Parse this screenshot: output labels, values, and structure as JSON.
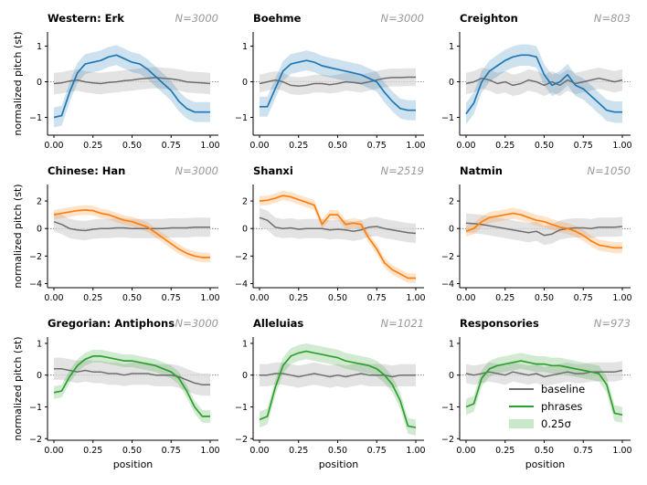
{
  "figure": {
    "ylabel": "normalized pitch (st)",
    "xlabel": "position",
    "legend": {
      "placement": "lower-right of last panel",
      "items": [
        {
          "label": "baseline",
          "kind": "line",
          "color": "#6e6e6e"
        },
        {
          "label": "phrases",
          "kind": "line",
          "color": "#2ca02c"
        },
        {
          "label": "0.25σ",
          "kind": "patch",
          "color": "#2ca02c"
        }
      ]
    },
    "colors": {
      "western": "#1f77b4",
      "chinese": "#ff7f0e",
      "gregorian": "#2ca02c",
      "baseline": "#6e6e6e",
      "band": "#d9d9d9"
    }
  },
  "chart_data": [
    {
      "type": "line",
      "title": "Western: Erk",
      "n": "N=3000",
      "ylabel": "normalized pitch (st)",
      "xlabel": "",
      "color": "#1f77b4",
      "xlim": [
        0,
        1
      ],
      "ylim": [
        -1.5,
        1.4
      ],
      "yticks": [
        -1,
        0,
        1
      ],
      "xticks": [
        "0.00",
        "0.25",
        "0.50",
        "0.75",
        "1.00"
      ],
      "x": [
        0,
        0.05,
        0.1,
        0.15,
        0.2,
        0.25,
        0.3,
        0.35,
        0.4,
        0.45,
        0.5,
        0.55,
        0.6,
        0.65,
        0.7,
        0.75,
        0.8,
        0.85,
        0.9,
        0.95,
        1.0
      ],
      "series": [
        {
          "name": "phrases",
          "values": [
            -1.0,
            -0.95,
            -0.3,
            0.25,
            0.5,
            0.55,
            0.6,
            0.7,
            0.75,
            0.65,
            0.55,
            0.5,
            0.35,
            0.15,
            -0.05,
            -0.25,
            -0.55,
            -0.75,
            -0.85,
            -0.85,
            -0.85
          ],
          "band": 0.28
        },
        {
          "name": "baseline",
          "values": [
            -0.05,
            -0.03,
            0.02,
            0.05,
            0.0,
            -0.03,
            -0.05,
            -0.02,
            0.0,
            0.03,
            0.05,
            0.08,
            0.1,
            0.12,
            0.1,
            0.08,
            0.05,
            0.0,
            -0.02,
            -0.03,
            -0.05
          ],
          "band": 0.3
        }
      ]
    },
    {
      "type": "line",
      "title": "Boehme",
      "n": "N=3000",
      "ylabel": "",
      "xlabel": "",
      "color": "#1f77b4",
      "xlim": [
        0,
        1
      ],
      "ylim": [
        -1.5,
        1.4
      ],
      "yticks": [
        -1,
        0,
        1
      ],
      "xticks": [
        "0.00",
        "0.25",
        "0.50",
        "0.75",
        "1.00"
      ],
      "x": [
        0,
        0.05,
        0.1,
        0.15,
        0.2,
        0.25,
        0.3,
        0.35,
        0.4,
        0.45,
        0.5,
        0.55,
        0.6,
        0.65,
        0.7,
        0.75,
        0.8,
        0.85,
        0.9,
        0.95,
        1.0
      ],
      "series": [
        {
          "name": "phrases",
          "values": [
            -0.7,
            -0.7,
            -0.2,
            0.3,
            0.5,
            0.55,
            0.6,
            0.55,
            0.45,
            0.4,
            0.35,
            0.3,
            0.25,
            0.2,
            0.1,
            0.0,
            -0.3,
            -0.55,
            -0.75,
            -0.8,
            -0.8
          ],
          "band": 0.28
        },
        {
          "name": "baseline",
          "values": [
            -0.05,
            0.0,
            0.05,
            0.0,
            -0.1,
            -0.12,
            -0.1,
            -0.05,
            -0.05,
            -0.08,
            -0.05,
            0.0,
            -0.02,
            -0.05,
            0.0,
            0.05,
            0.1,
            0.12,
            0.12,
            0.13,
            0.13
          ],
          "band": 0.25
        }
      ]
    },
    {
      "type": "line",
      "title": "Creighton",
      "n": "N=803",
      "ylabel": "",
      "xlabel": "",
      "color": "#1f77b4",
      "xlim": [
        0,
        1
      ],
      "ylim": [
        -1.5,
        1.4
      ],
      "yticks": [
        -1,
        0,
        1
      ],
      "xticks": [
        "0.00",
        "0.25",
        "0.50",
        "0.75",
        "1.00"
      ],
      "x": [
        0,
        0.05,
        0.1,
        0.15,
        0.2,
        0.25,
        0.3,
        0.35,
        0.4,
        0.45,
        0.5,
        0.55,
        0.6,
        0.65,
        0.7,
        0.75,
        0.8,
        0.85,
        0.9,
        0.95,
        1.0
      ],
      "series": [
        {
          "name": "phrases",
          "values": [
            -0.9,
            -0.6,
            0.0,
            0.3,
            0.45,
            0.6,
            0.7,
            0.75,
            0.75,
            0.7,
            0.2,
            -0.1,
            0.0,
            0.2,
            -0.1,
            -0.2,
            -0.4,
            -0.6,
            -0.8,
            -0.85,
            -0.85
          ],
          "band": 0.3
        },
        {
          "name": "baseline",
          "values": [
            -0.05,
            0.0,
            0.1,
            0.05,
            -0.05,
            0.0,
            -0.1,
            -0.05,
            0.05,
            0.0,
            -0.1,
            0.0,
            -0.1,
            0.05,
            -0.05,
            0.0,
            0.05,
            0.1,
            0.05,
            0.0,
            0.05
          ],
          "band": 0.3
        }
      ]
    },
    {
      "type": "line",
      "title": "Chinese: Han",
      "n": "N=3000",
      "ylabel": "normalized pitch (st)",
      "xlabel": "",
      "color": "#ff7f0e",
      "xlim": [
        0,
        1
      ],
      "ylim": [
        -4.3,
        3.2
      ],
      "yticks": [
        -4,
        -2,
        0,
        2
      ],
      "xticks": [
        "0.00",
        "0.25",
        "0.50",
        "0.75",
        "1.00"
      ],
      "x": [
        0,
        0.05,
        0.1,
        0.15,
        0.2,
        0.25,
        0.3,
        0.35,
        0.4,
        0.45,
        0.5,
        0.55,
        0.6,
        0.65,
        0.7,
        0.75,
        0.8,
        0.85,
        0.9,
        0.95,
        1.0
      ],
      "series": [
        {
          "name": "phrases",
          "values": [
            1.0,
            1.1,
            1.2,
            1.3,
            1.35,
            1.3,
            1.1,
            1.0,
            0.8,
            0.6,
            0.5,
            0.3,
            0.1,
            -0.3,
            -0.7,
            -1.1,
            -1.5,
            -1.8,
            -2.0,
            -2.1,
            -2.1
          ],
          "band": 0.35
        },
        {
          "name": "baseline",
          "values": [
            0.5,
            0.3,
            0.0,
            -0.1,
            -0.15,
            -0.05,
            0.0,
            0.0,
            0.05,
            0.05,
            0.0,
            0.0,
            0.0,
            0.0,
            0.0,
            0.05,
            0.05,
            0.05,
            0.1,
            0.1,
            0.1
          ],
          "band": 0.7
        }
      ]
    },
    {
      "type": "line",
      "title": "Shanxi",
      "n": "N=2519",
      "ylabel": "",
      "xlabel": "",
      "color": "#ff7f0e",
      "xlim": [
        0,
        1
      ],
      "ylim": [
        -4.3,
        3.2
      ],
      "yticks": [
        -4,
        -2,
        0,
        2
      ],
      "xticks": [
        "0.00",
        "0.25",
        "0.50",
        "0.75",
        "1.00"
      ],
      "x": [
        0,
        0.05,
        0.1,
        0.15,
        0.2,
        0.25,
        0.3,
        0.35,
        0.4,
        0.45,
        0.5,
        0.55,
        0.6,
        0.65,
        0.7,
        0.75,
        0.8,
        0.85,
        0.9,
        0.95,
        1.0
      ],
      "series": [
        {
          "name": "phrases",
          "values": [
            2.0,
            2.05,
            2.2,
            2.4,
            2.3,
            2.1,
            1.9,
            1.7,
            0.3,
            1.0,
            1.0,
            0.3,
            0.4,
            0.3,
            -0.7,
            -1.5,
            -2.5,
            -3.0,
            -3.3,
            -3.6,
            -3.6
          ],
          "band": 0.35
        },
        {
          "name": "baseline",
          "values": [
            0.8,
            0.6,
            0.1,
            0.0,
            0.05,
            -0.05,
            0.0,
            0.0,
            0.0,
            -0.1,
            -0.05,
            -0.1,
            -0.2,
            -0.1,
            0.1,
            0.15,
            0.0,
            -0.1,
            -0.2,
            -0.3,
            -0.35
          ],
          "band": 0.7
        }
      ]
    },
    {
      "type": "line",
      "title": "Natmin",
      "n": "N=1050",
      "ylabel": "",
      "xlabel": "",
      "color": "#ff7f0e",
      "xlim": [
        0,
        1
      ],
      "ylim": [
        -4.3,
        3.2
      ],
      "yticks": [
        -4,
        -2,
        0,
        2
      ],
      "xticks": [
        "0.00",
        "0.25",
        "0.50",
        "0.75",
        "1.00"
      ],
      "x": [
        0,
        0.05,
        0.1,
        0.15,
        0.2,
        0.25,
        0.3,
        0.35,
        0.4,
        0.45,
        0.5,
        0.55,
        0.6,
        0.65,
        0.7,
        0.75,
        0.8,
        0.85,
        0.9,
        0.95,
        1.0
      ],
      "series": [
        {
          "name": "phrases",
          "values": [
            -0.2,
            0.0,
            0.5,
            0.8,
            0.9,
            1.0,
            1.1,
            1.0,
            0.8,
            0.6,
            0.5,
            0.3,
            0.1,
            0.0,
            -0.2,
            -0.5,
            -0.9,
            -1.2,
            -1.3,
            -1.4,
            -1.4
          ],
          "band": 0.4
        },
        {
          "name": "baseline",
          "values": [
            0.4,
            0.35,
            0.3,
            0.2,
            0.1,
            0.0,
            -0.1,
            -0.2,
            -0.3,
            -0.2,
            -0.5,
            -0.4,
            -0.1,
            0.0,
            0.05,
            0.05,
            0.0,
            0.1,
            0.1,
            0.1,
            0.15
          ],
          "band": 0.7
        }
      ]
    },
    {
      "type": "line",
      "title": "Gregorian: Antiphons",
      "n": "N=3000",
      "ylabel": "normalized pitch (st)",
      "xlabel": "position",
      "color": "#2ca02c",
      "xlim": [
        0,
        1
      ],
      "ylim": [
        -2.05,
        1.2
      ],
      "yticks": [
        -2,
        -1,
        0,
        1
      ],
      "xticks": [
        "0.00",
        "0.25",
        "0.50",
        "0.75",
        "1.00"
      ],
      "x": [
        0,
        0.05,
        0.1,
        0.15,
        0.2,
        0.25,
        0.3,
        0.35,
        0.4,
        0.45,
        0.5,
        0.55,
        0.6,
        0.65,
        0.7,
        0.75,
        0.8,
        0.85,
        0.9,
        0.95,
        1.0
      ],
      "series": [
        {
          "name": "phrases",
          "values": [
            -0.55,
            -0.5,
            -0.05,
            0.3,
            0.5,
            0.6,
            0.6,
            0.55,
            0.5,
            0.45,
            0.45,
            0.4,
            0.35,
            0.3,
            0.2,
            0.1,
            -0.1,
            -0.5,
            -1.0,
            -1.3,
            -1.3
          ],
          "band": 0.2
        },
        {
          "name": "baseline",
          "values": [
            0.2,
            0.2,
            0.15,
            0.1,
            0.15,
            0.1,
            0.1,
            0.05,
            0.05,
            0.0,
            0.05,
            0.05,
            0.05,
            0.0,
            0.0,
            0.0,
            -0.05,
            -0.15,
            -0.25,
            -0.3,
            -0.3
          ],
          "band": 0.35
        }
      ]
    },
    {
      "type": "line",
      "title": "Alleluias",
      "n": "N=1021",
      "ylabel": "",
      "xlabel": "position",
      "color": "#2ca02c",
      "xlim": [
        0,
        1
      ],
      "ylim": [
        -2.05,
        1.2
      ],
      "yticks": [
        -2,
        -1,
        0,
        1
      ],
      "xticks": [
        "0.00",
        "0.25",
        "0.50",
        "0.75",
        "1.00"
      ],
      "x": [
        0,
        0.05,
        0.1,
        0.15,
        0.2,
        0.25,
        0.3,
        0.35,
        0.4,
        0.45,
        0.5,
        0.55,
        0.6,
        0.65,
        0.7,
        0.75,
        0.8,
        0.85,
        0.9,
        0.95,
        1.0
      ],
      "series": [
        {
          "name": "phrases",
          "values": [
            -1.4,
            -1.3,
            -0.4,
            0.3,
            0.6,
            0.7,
            0.75,
            0.7,
            0.65,
            0.6,
            0.55,
            0.45,
            0.4,
            0.35,
            0.3,
            0.2,
            0.0,
            -0.3,
            -0.8,
            -1.6,
            -1.65
          ],
          "band": 0.25
        },
        {
          "name": "baseline",
          "values": [
            0.0,
            0.0,
            0.05,
            0.05,
            0.0,
            -0.05,
            0.0,
            0.05,
            0.0,
            -0.05,
            0.0,
            -0.05,
            0.0,
            0.05,
            0.0,
            0.0,
            0.0,
            -0.05,
            0.0,
            0.0,
            0.0
          ],
          "band": 0.35
        }
      ]
    },
    {
      "type": "line",
      "title": "Responsories",
      "n": "N=973",
      "ylabel": "",
      "xlabel": "position",
      "color": "#2ca02c",
      "xlim": [
        0,
        1
      ],
      "ylim": [
        -2.05,
        1.2
      ],
      "yticks": [
        -2,
        -1,
        0,
        1
      ],
      "xticks": [
        "0.00",
        "0.25",
        "0.50",
        "0.75",
        "1.00"
      ],
      "x": [
        0,
        0.05,
        0.1,
        0.15,
        0.2,
        0.25,
        0.3,
        0.35,
        0.4,
        0.45,
        0.5,
        0.55,
        0.6,
        0.65,
        0.7,
        0.75,
        0.8,
        0.85,
        0.9,
        0.95,
        1.0
      ],
      "series": [
        {
          "name": "phrases",
          "values": [
            -1.0,
            -0.9,
            -0.1,
            0.2,
            0.3,
            0.35,
            0.4,
            0.45,
            0.4,
            0.35,
            0.35,
            0.3,
            0.3,
            0.25,
            0.2,
            0.15,
            0.1,
            0.05,
            -0.3,
            -1.2,
            -1.25
          ],
          "band": 0.25
        },
        {
          "name": "baseline",
          "values": [
            0.05,
            0.0,
            0.05,
            0.1,
            0.05,
            0.0,
            0.1,
            0.05,
            0.0,
            0.05,
            -0.05,
            0.0,
            0.05,
            0.1,
            0.05,
            0.05,
            0.1,
            0.1,
            0.1,
            0.1,
            0.15
          ],
          "band": 0.3
        }
      ]
    }
  ]
}
